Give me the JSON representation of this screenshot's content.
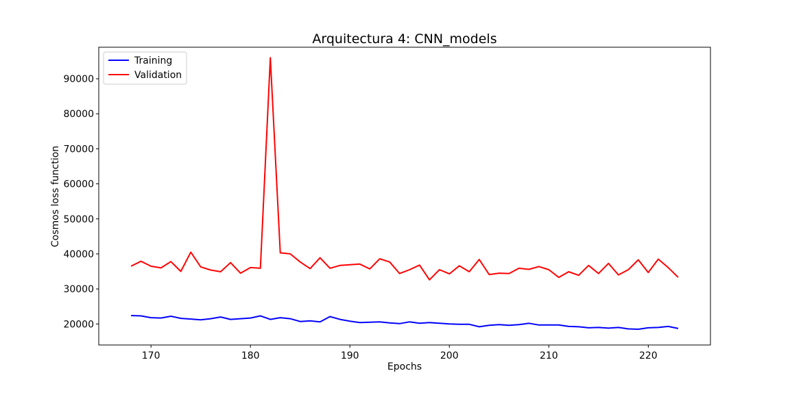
{
  "chart_data": {
    "type": "line",
    "title": "Arquitectura 4: CNN_models",
    "xlabel": "Epochs",
    "ylabel": "Cosmos loss function",
    "xlim": [
      164.75,
      226.25
    ],
    "ylim": [
      14000,
      99000
    ],
    "x_ticks": [
      170,
      180,
      190,
      200,
      210,
      220
    ],
    "y_ticks": [
      20000,
      30000,
      40000,
      50000,
      60000,
      70000,
      80000,
      90000
    ],
    "grid": false,
    "legend_position": "top-left",
    "x": [
      168,
      169,
      170,
      171,
      172,
      173,
      174,
      175,
      176,
      177,
      178,
      179,
      180,
      181,
      182,
      183,
      184,
      185,
      186,
      187,
      188,
      189,
      190,
      191,
      192,
      193,
      194,
      195,
      196,
      197,
      198,
      199,
      200,
      201,
      202,
      203,
      204,
      205,
      206,
      207,
      208,
      209,
      210,
      211,
      212,
      213,
      214,
      215,
      216,
      217,
      218,
      219,
      220,
      221,
      222,
      223
    ],
    "series": [
      {
        "name": "Training",
        "color": "#0000ff",
        "values": [
          22400,
          22300,
          21800,
          21700,
          22200,
          21600,
          21400,
          21200,
          21500,
          22000,
          21300,
          21500,
          21700,
          22300,
          21300,
          21800,
          21500,
          20700,
          20900,
          20600,
          22100,
          21300,
          20800,
          20400,
          20500,
          20600,
          20300,
          20100,
          20600,
          20200,
          20400,
          20200,
          20000,
          19900,
          19900,
          19200,
          19600,
          19800,
          19600,
          19800,
          20200,
          19700,
          19700,
          19700,
          19300,
          19200,
          18900,
          19000,
          18800,
          19000,
          18600,
          18500,
          18900,
          19000,
          19300,
          18700
        ]
      },
      {
        "name": "Validation",
        "color": "#ff0000",
        "values": [
          36500,
          37900,
          36500,
          36000,
          37800,
          35000,
          40500,
          36300,
          35400,
          34900,
          37500,
          34500,
          36100,
          35900,
          96000,
          40300,
          40000,
          37700,
          35800,
          38900,
          35900,
          36700,
          36900,
          37100,
          35700,
          38600,
          37700,
          34400,
          35500,
          36800,
          32600,
          35500,
          34300,
          36600,
          34900,
          38400,
          34100,
          34500,
          34400,
          35900,
          35600,
          36400,
          35500,
          33300,
          34900,
          33900,
          36700,
          34400,
          37300,
          34000,
          35500,
          38300,
          34700,
          38500,
          36100,
          33300
        ]
      }
    ]
  }
}
